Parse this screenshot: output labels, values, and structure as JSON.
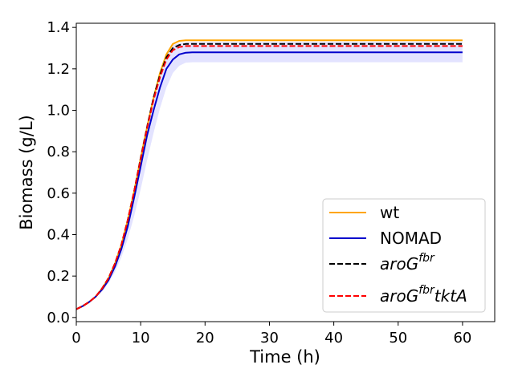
{
  "chart_data": {
    "type": "line",
    "title": "",
    "xlabel": "Time (h)",
    "ylabel": "Biomass (g/L)",
    "xlim": [
      0,
      65
    ],
    "ylim": [
      -0.02,
      1.42
    ],
    "xticks": [
      0,
      10,
      20,
      30,
      40,
      50,
      60
    ],
    "yticks": [
      0.0,
      0.2,
      0.4,
      0.6,
      0.8,
      1.0,
      1.2,
      1.4
    ],
    "xtick_labels": [
      "0",
      "10",
      "20",
      "30",
      "40",
      "50",
      "60"
    ],
    "ytick_labels": [
      "0.0",
      "0.2",
      "0.4",
      "0.6",
      "0.8",
      "1.0",
      "1.2",
      "1.4"
    ],
    "grid": false,
    "legend_position": "lower-right",
    "x": [
      0,
      1,
      2,
      3,
      4,
      5,
      6,
      7,
      8,
      9,
      10,
      11,
      12,
      13,
      14,
      15,
      16,
      17,
      18,
      20,
      25,
      30,
      35,
      40,
      45,
      50,
      55,
      60
    ],
    "series": [
      {
        "name": "wt",
        "legend_text": "wt",
        "color": "#ffa500",
        "dash": "solid",
        "values": [
          0.04,
          0.055,
          0.075,
          0.1,
          0.14,
          0.19,
          0.26,
          0.35,
          0.47,
          0.61,
          0.77,
          0.92,
          1.06,
          1.18,
          1.27,
          1.32,
          1.335,
          1.338,
          1.338,
          1.338,
          1.338,
          1.338,
          1.338,
          1.338,
          1.338,
          1.338,
          1.338,
          1.338
        ]
      },
      {
        "name": "NOMAD",
        "legend_text": "NOMAD",
        "color": "#0000cc",
        "dash": "solid",
        "values": [
          0.04,
          0.055,
          0.075,
          0.1,
          0.135,
          0.18,
          0.245,
          0.33,
          0.44,
          0.58,
          0.73,
          0.88,
          1.0,
          1.11,
          1.2,
          1.245,
          1.27,
          1.278,
          1.28,
          1.28,
          1.28,
          1.28,
          1.28,
          1.28,
          1.28,
          1.28,
          1.28,
          1.28
        ],
        "band_low": [
          0.04,
          0.054,
          0.072,
          0.095,
          0.125,
          0.165,
          0.22,
          0.29,
          0.38,
          0.49,
          0.62,
          0.76,
          0.89,
          1.01,
          1.11,
          1.18,
          1.215,
          1.23,
          1.232,
          1.232,
          1.232,
          1.232,
          1.232,
          1.232,
          1.232,
          1.232,
          1.232,
          1.232
        ],
        "band_high": [
          0.04,
          0.056,
          0.078,
          0.105,
          0.142,
          0.195,
          0.265,
          0.355,
          0.475,
          0.62,
          0.78,
          0.93,
          1.07,
          1.19,
          1.275,
          1.315,
          1.325,
          1.328,
          1.33,
          1.33,
          1.33,
          1.33,
          1.33,
          1.33,
          1.33,
          1.33,
          1.33,
          1.33
        ],
        "band_color": "#c8c8ff"
      },
      {
        "name": "aroG^fbr",
        "legend_text": "aroG",
        "legend_sup": "fbr",
        "legend_tail": "",
        "color": "#000000",
        "dash": "dashed",
        "values": [
          0.04,
          0.055,
          0.075,
          0.1,
          0.14,
          0.19,
          0.26,
          0.35,
          0.47,
          0.61,
          0.77,
          0.92,
          1.06,
          1.17,
          1.255,
          1.3,
          1.315,
          1.32,
          1.32,
          1.32,
          1.32,
          1.32,
          1.32,
          1.32,
          1.32,
          1.32,
          1.32,
          1.32
        ]
      },
      {
        "name": "aroG^fbr tktA",
        "legend_text": "aroG",
        "legend_sup": "fbr",
        "legend_tail": "tktA",
        "color": "#ff0000",
        "dash": "dashed",
        "values": [
          0.04,
          0.055,
          0.075,
          0.1,
          0.14,
          0.19,
          0.26,
          0.35,
          0.47,
          0.61,
          0.765,
          0.915,
          1.05,
          1.16,
          1.245,
          1.29,
          1.305,
          1.31,
          1.31,
          1.31,
          1.31,
          1.31,
          1.31,
          1.31,
          1.31,
          1.31,
          1.31,
          1.31
        ]
      }
    ]
  }
}
